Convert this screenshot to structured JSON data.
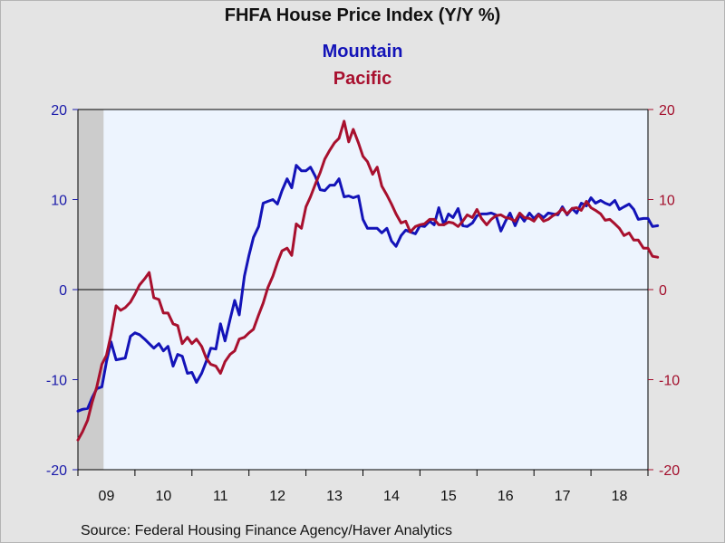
{
  "title": "FHFA House Price Index (Y/Y %)",
  "source": "Source:  Federal Housing Finance Agency/Haver Analytics",
  "colors": {
    "plot_bg": "#edf4fe",
    "page_bg": "#e4e4e4",
    "left_axis": "#1a1aaa",
    "right_axis": "#a30f2c",
    "recession": "#cccccc",
    "mountain": "#1313b8",
    "pacific": "#a8102e"
  },
  "chart_data": {
    "type": "line",
    "title": "FHFA House Price Index (Y/Y %)",
    "x_unit": "year (monthly observations)",
    "x_range": [
      2009.0,
      2019.0
    ],
    "x_tick_labels": [
      "09",
      "10",
      "11",
      "12",
      "13",
      "14",
      "15",
      "16",
      "17",
      "18"
    ],
    "x_tick_years": [
      2009,
      2010,
      2011,
      2012,
      2013,
      2014,
      2015,
      2016,
      2017,
      2018
    ],
    "y_left": {
      "range": [
        -20,
        20
      ],
      "ticks": [
        -20,
        -10,
        0,
        10,
        20
      ],
      "labels": [
        "-20",
        "-10",
        "0",
        "10",
        "20"
      ]
    },
    "y_right": {
      "range": [
        -20,
        20
      ],
      "ticks": [
        -20,
        -10,
        0,
        10,
        20
      ],
      "labels": [
        "-20",
        "-10",
        "0",
        "10",
        "20"
      ]
    },
    "zero_line": true,
    "grid": false,
    "legend": "top-center",
    "recession_shading": [
      [
        2009.0,
        2009.45
      ]
    ],
    "series": [
      {
        "name": "Mountain",
        "axis": "left",
        "points": [
          [
            2009.0,
            -13.5
          ],
          [
            2009.08,
            -13.3
          ],
          [
            2009.17,
            -13.2
          ],
          [
            2009.25,
            -12.0
          ],
          [
            2009.33,
            -11.0
          ],
          [
            2009.42,
            -10.8
          ],
          [
            2009.5,
            -8.0
          ],
          [
            2009.58,
            -5.8
          ],
          [
            2009.67,
            -7.8
          ],
          [
            2009.75,
            -7.7
          ],
          [
            2009.83,
            -7.6
          ],
          [
            2009.92,
            -5.2
          ],
          [
            2010.0,
            -4.8
          ],
          [
            2010.08,
            -5.0
          ],
          [
            2010.17,
            -5.5
          ],
          [
            2010.25,
            -6.0
          ],
          [
            2010.33,
            -6.5
          ],
          [
            2010.42,
            -6.0
          ],
          [
            2010.5,
            -6.8
          ],
          [
            2010.58,
            -6.3
          ],
          [
            2010.67,
            -8.5
          ],
          [
            2010.75,
            -7.2
          ],
          [
            2010.83,
            -7.4
          ],
          [
            2010.92,
            -9.3
          ],
          [
            2011.0,
            -9.2
          ],
          [
            2011.08,
            -10.3
          ],
          [
            2011.17,
            -9.3
          ],
          [
            2011.25,
            -8.0
          ],
          [
            2011.33,
            -6.5
          ],
          [
            2011.42,
            -6.6
          ],
          [
            2011.5,
            -3.8
          ],
          [
            2011.58,
            -5.7
          ],
          [
            2011.67,
            -3.3
          ],
          [
            2011.75,
            -1.2
          ],
          [
            2011.83,
            -2.8
          ],
          [
            2011.92,
            1.5
          ],
          [
            2012.0,
            3.8
          ],
          [
            2012.08,
            5.8
          ],
          [
            2012.17,
            7.0
          ],
          [
            2012.25,
            9.6
          ],
          [
            2012.33,
            9.8
          ],
          [
            2012.42,
            10.0
          ],
          [
            2012.5,
            9.5
          ],
          [
            2012.58,
            11.0
          ],
          [
            2012.67,
            12.3
          ],
          [
            2012.75,
            11.3
          ],
          [
            2012.83,
            13.8
          ],
          [
            2012.92,
            13.2
          ],
          [
            2013.0,
            13.2
          ],
          [
            2013.08,
            13.6
          ],
          [
            2013.17,
            12.5
          ],
          [
            2013.25,
            11.1
          ],
          [
            2013.33,
            11.0
          ],
          [
            2013.42,
            11.6
          ],
          [
            2013.5,
            11.6
          ],
          [
            2013.58,
            12.3
          ],
          [
            2013.67,
            10.3
          ],
          [
            2013.75,
            10.4
          ],
          [
            2013.83,
            10.2
          ],
          [
            2013.92,
            10.4
          ],
          [
            2014.0,
            7.8
          ],
          [
            2014.08,
            6.8
          ],
          [
            2014.17,
            6.8
          ],
          [
            2014.25,
            6.8
          ],
          [
            2014.33,
            6.3
          ],
          [
            2014.42,
            6.8
          ],
          [
            2014.5,
            5.4
          ],
          [
            2014.58,
            4.8
          ],
          [
            2014.67,
            6.0
          ],
          [
            2014.75,
            6.6
          ],
          [
            2014.83,
            6.4
          ],
          [
            2014.92,
            6.2
          ],
          [
            2015.0,
            7.1
          ],
          [
            2015.08,
            7.0
          ],
          [
            2015.17,
            7.6
          ],
          [
            2015.25,
            7.2
          ],
          [
            2015.33,
            9.1
          ],
          [
            2015.42,
            7.2
          ],
          [
            2015.5,
            8.4
          ],
          [
            2015.58,
            8.0
          ],
          [
            2015.67,
            9.0
          ],
          [
            2015.75,
            7.1
          ],
          [
            2015.83,
            7.0
          ],
          [
            2015.92,
            7.4
          ],
          [
            2016.0,
            8.2
          ],
          [
            2016.08,
            8.4
          ],
          [
            2016.17,
            8.4
          ],
          [
            2016.25,
            8.5
          ],
          [
            2016.33,
            8.3
          ],
          [
            2016.42,
            6.5
          ],
          [
            2016.5,
            7.6
          ],
          [
            2016.58,
            8.5
          ],
          [
            2016.67,
            7.1
          ],
          [
            2016.75,
            8.3
          ],
          [
            2016.83,
            7.6
          ],
          [
            2016.92,
            8.5
          ],
          [
            2017.0,
            7.9
          ],
          [
            2017.08,
            8.4
          ],
          [
            2017.17,
            8.0
          ],
          [
            2017.25,
            8.5
          ],
          [
            2017.33,
            8.4
          ],
          [
            2017.42,
            8.3
          ],
          [
            2017.5,
            9.2
          ],
          [
            2017.58,
            8.3
          ],
          [
            2017.67,
            9.0
          ],
          [
            2017.75,
            8.5
          ],
          [
            2017.83,
            9.6
          ],
          [
            2017.92,
            9.3
          ],
          [
            2018.0,
            10.2
          ],
          [
            2018.08,
            9.6
          ],
          [
            2018.17,
            9.9
          ],
          [
            2018.25,
            9.6
          ],
          [
            2018.33,
            9.4
          ],
          [
            2018.42,
            9.9
          ],
          [
            2018.5,
            8.9
          ],
          [
            2018.58,
            9.2
          ],
          [
            2018.67,
            9.5
          ],
          [
            2018.75,
            8.9
          ],
          [
            2018.83,
            7.8
          ],
          [
            2018.92,
            7.9
          ],
          [
            2019.0,
            7.9
          ],
          [
            2019.08,
            7.0
          ],
          [
            2019.17,
            7.1
          ]
        ]
      },
      {
        "name": "Pacific",
        "axis": "right",
        "points": [
          [
            2009.0,
            -16.7
          ],
          [
            2009.08,
            -15.8
          ],
          [
            2009.17,
            -14.5
          ],
          [
            2009.25,
            -12.5
          ],
          [
            2009.33,
            -10.8
          ],
          [
            2009.42,
            -8.3
          ],
          [
            2009.5,
            -7.3
          ],
          [
            2009.58,
            -5.0
          ],
          [
            2009.67,
            -1.8
          ],
          [
            2009.75,
            -2.3
          ],
          [
            2009.83,
            -2.0
          ],
          [
            2009.92,
            -1.4
          ],
          [
            2010.0,
            -0.5
          ],
          [
            2010.08,
            0.5
          ],
          [
            2010.17,
            1.2
          ],
          [
            2010.25,
            1.9
          ],
          [
            2010.33,
            -0.9
          ],
          [
            2010.42,
            -1.1
          ],
          [
            2010.5,
            -2.6
          ],
          [
            2010.58,
            -2.6
          ],
          [
            2010.67,
            -3.8
          ],
          [
            2010.75,
            -4.0
          ],
          [
            2010.83,
            -6.0
          ],
          [
            2010.92,
            -5.3
          ],
          [
            2011.0,
            -6.0
          ],
          [
            2011.08,
            -5.5
          ],
          [
            2011.17,
            -6.3
          ],
          [
            2011.25,
            -7.6
          ],
          [
            2011.33,
            -8.3
          ],
          [
            2011.42,
            -8.5
          ],
          [
            2011.5,
            -9.3
          ],
          [
            2011.58,
            -8.0
          ],
          [
            2011.67,
            -7.2
          ],
          [
            2011.75,
            -6.8
          ],
          [
            2011.83,
            -5.5
          ],
          [
            2011.92,
            -5.3
          ],
          [
            2012.0,
            -4.8
          ],
          [
            2012.08,
            -4.4
          ],
          [
            2012.17,
            -2.8
          ],
          [
            2012.25,
            -1.5
          ],
          [
            2012.33,
            0.2
          ],
          [
            2012.42,
            1.5
          ],
          [
            2012.5,
            3.0
          ],
          [
            2012.58,
            4.3
          ],
          [
            2012.67,
            4.6
          ],
          [
            2012.75,
            3.8
          ],
          [
            2012.83,
            7.3
          ],
          [
            2012.92,
            6.8
          ],
          [
            2013.0,
            9.2
          ],
          [
            2013.08,
            10.3
          ],
          [
            2013.17,
            11.8
          ],
          [
            2013.25,
            13.0
          ],
          [
            2013.33,
            14.5
          ],
          [
            2013.42,
            15.5
          ],
          [
            2013.5,
            16.3
          ],
          [
            2013.58,
            16.8
          ],
          [
            2013.67,
            18.7
          ],
          [
            2013.75,
            16.4
          ],
          [
            2013.83,
            17.8
          ],
          [
            2013.92,
            16.3
          ],
          [
            2014.0,
            14.8
          ],
          [
            2014.08,
            14.2
          ],
          [
            2014.17,
            12.8
          ],
          [
            2014.25,
            13.6
          ],
          [
            2014.33,
            11.5
          ],
          [
            2014.42,
            10.5
          ],
          [
            2014.5,
            9.5
          ],
          [
            2014.58,
            8.4
          ],
          [
            2014.67,
            7.4
          ],
          [
            2014.75,
            7.6
          ],
          [
            2014.83,
            6.4
          ],
          [
            2014.92,
            7.0
          ],
          [
            2015.0,
            7.2
          ],
          [
            2015.08,
            7.3
          ],
          [
            2015.17,
            7.8
          ],
          [
            2015.25,
            7.8
          ],
          [
            2015.33,
            7.2
          ],
          [
            2015.42,
            7.2
          ],
          [
            2015.5,
            7.5
          ],
          [
            2015.58,
            7.4
          ],
          [
            2015.67,
            7.0
          ],
          [
            2015.75,
            7.6
          ],
          [
            2015.83,
            8.3
          ],
          [
            2015.92,
            8.0
          ],
          [
            2016.0,
            8.9
          ],
          [
            2016.08,
            7.9
          ],
          [
            2016.17,
            7.2
          ],
          [
            2016.25,
            7.8
          ],
          [
            2016.33,
            8.2
          ],
          [
            2016.42,
            8.3
          ],
          [
            2016.5,
            8.0
          ],
          [
            2016.58,
            7.9
          ],
          [
            2016.67,
            7.6
          ],
          [
            2016.75,
            8.5
          ],
          [
            2016.83,
            8.0
          ],
          [
            2016.92,
            7.9
          ],
          [
            2017.0,
            7.6
          ],
          [
            2017.08,
            8.3
          ],
          [
            2017.17,
            7.6
          ],
          [
            2017.25,
            7.8
          ],
          [
            2017.33,
            8.2
          ],
          [
            2017.42,
            8.5
          ],
          [
            2017.5,
            9.0
          ],
          [
            2017.58,
            8.4
          ],
          [
            2017.67,
            9.0
          ],
          [
            2017.75,
            9.1
          ],
          [
            2017.83,
            8.8
          ],
          [
            2017.92,
            9.8
          ],
          [
            2018.0,
            9.1
          ],
          [
            2018.08,
            8.8
          ],
          [
            2018.17,
            8.4
          ],
          [
            2018.25,
            7.7
          ],
          [
            2018.33,
            7.8
          ],
          [
            2018.42,
            7.3
          ],
          [
            2018.5,
            6.8
          ],
          [
            2018.58,
            6.0
          ],
          [
            2018.67,
            6.3
          ],
          [
            2018.75,
            5.5
          ],
          [
            2018.83,
            5.5
          ],
          [
            2018.92,
            4.6
          ],
          [
            2019.0,
            4.6
          ],
          [
            2019.08,
            3.7
          ],
          [
            2019.17,
            3.6
          ]
        ]
      }
    ]
  }
}
